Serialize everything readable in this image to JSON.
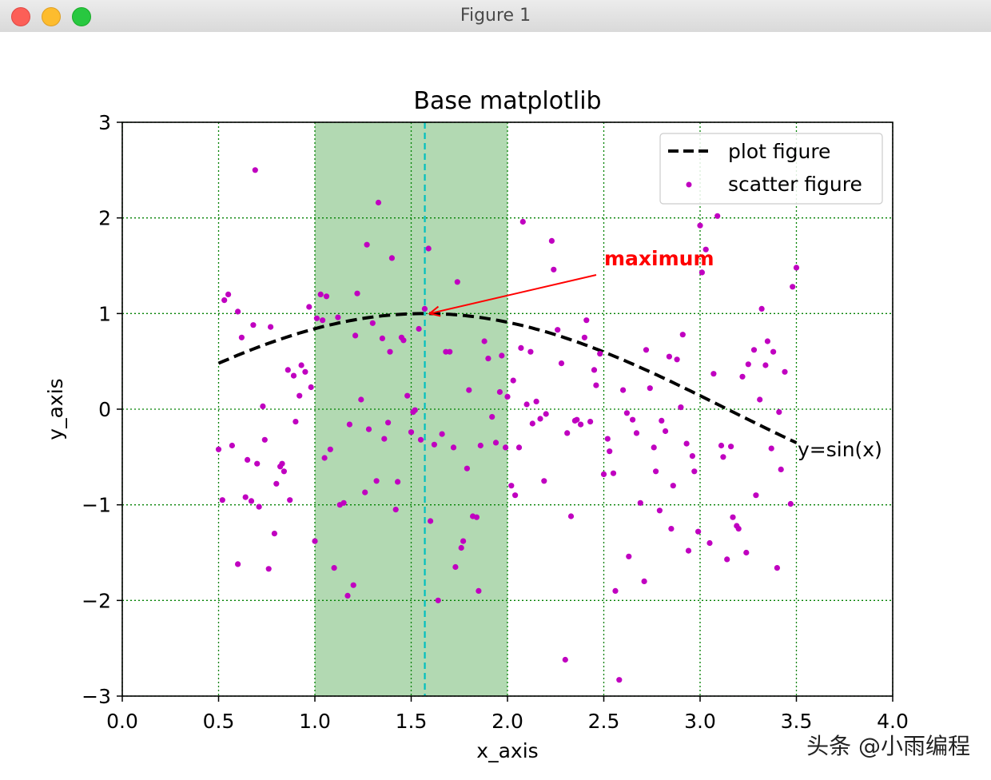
{
  "window": {
    "title": "Figure 1"
  },
  "watermark": "头条 @小雨编程",
  "chart_data": {
    "type": "line+scatter",
    "title": "Base matplotlib",
    "xlabel": "x_axis",
    "ylabel": "y_axis",
    "xlim": [
      0.0,
      4.0
    ],
    "ylim": [
      -3,
      3
    ],
    "xticks": [
      0.0,
      0.5,
      1.0,
      1.5,
      2.0,
      2.5,
      3.0,
      3.5,
      4.0
    ],
    "xtick_labels": [
      "0.0",
      "0.5",
      "1.0",
      "1.5",
      "2.0",
      "2.5",
      "3.0",
      "3.5",
      "4.0"
    ],
    "yticks": [
      -3,
      -2,
      -1,
      0,
      1,
      2,
      3
    ],
    "ytick_labels": [
      "−3",
      "−2",
      "−1",
      "0",
      "1",
      "2",
      "3"
    ],
    "grid": true,
    "grid_color": "#008000",
    "legend_position": "top-right",
    "shaded_span": {
      "x0": 1.0,
      "x1": 2.0,
      "color": "#008000"
    },
    "vline": {
      "x": 1.5708,
      "color": "#00bfbf"
    },
    "line_series": {
      "name": "plot figure",
      "function": "sin",
      "x_start": 0.5,
      "x_end": 3.5,
      "color": "#000000"
    },
    "line_label": "y=sin(x)",
    "annotation": {
      "text": "maximum",
      "point": [
        1.5708,
        1.0
      ],
      "text_at": [
        2.5,
        1.5
      ],
      "color": "#ff0000"
    },
    "scatter_series": {
      "name": "scatter figure",
      "color": "#c000c0",
      "points": [
        [
          0.5,
          -0.42
        ],
        [
          0.52,
          -0.95
        ],
        [
          0.53,
          1.14
        ],
        [
          0.55,
          1.2
        ],
        [
          0.57,
          -0.38
        ],
        [
          0.6,
          -1.62
        ],
        [
          0.6,
          1.02
        ],
        [
          0.62,
          0.75
        ],
        [
          0.64,
          -0.92
        ],
        [
          0.65,
          -0.53
        ],
        [
          0.67,
          -0.96
        ],
        [
          0.68,
          0.88
        ],
        [
          0.69,
          2.5
        ],
        [
          0.7,
          -0.57
        ],
        [
          0.71,
          -1.02
        ],
        [
          0.73,
          0.03
        ],
        [
          0.74,
          -0.32
        ],
        [
          0.76,
          -1.67
        ],
        [
          0.77,
          0.86
        ],
        [
          0.79,
          -1.3
        ],
        [
          0.8,
          -0.78
        ],
        [
          0.82,
          -0.6
        ],
        [
          0.83,
          -0.57
        ],
        [
          0.84,
          -0.65
        ],
        [
          0.86,
          0.41
        ],
        [
          0.87,
          -0.95
        ],
        [
          0.89,
          0.35
        ],
        [
          0.9,
          -0.13
        ],
        [
          0.92,
          0.14
        ],
        [
          0.93,
          0.46
        ],
        [
          0.95,
          0.39
        ],
        [
          0.97,
          1.07
        ],
        [
          0.98,
          0.23
        ],
        [
          1.0,
          -1.38
        ],
        [
          1.01,
          0.95
        ],
        [
          1.03,
          1.2
        ],
        [
          1.04,
          0.93
        ],
        [
          1.05,
          -0.51
        ],
        [
          1.06,
          1.18
        ],
        [
          1.08,
          -0.42
        ],
        [
          1.1,
          -1.66
        ],
        [
          1.12,
          0.96
        ],
        [
          1.13,
          -1.0
        ],
        [
          1.15,
          -0.98
        ],
        [
          1.17,
          -1.95
        ],
        [
          1.18,
          -0.16
        ],
        [
          1.2,
          -1.84
        ],
        [
          1.21,
          0.77
        ],
        [
          1.22,
          1.21
        ],
        [
          1.24,
          0.1
        ],
        [
          1.26,
          -0.87
        ],
        [
          1.27,
          1.72
        ],
        [
          1.28,
          -0.21
        ],
        [
          1.3,
          0.9
        ],
        [
          1.32,
          -0.75
        ],
        [
          1.33,
          2.16
        ],
        [
          1.35,
          0.74
        ],
        [
          1.36,
          -0.31
        ],
        [
          1.38,
          -0.14
        ],
        [
          1.39,
          0.6
        ],
        [
          1.4,
          1.58
        ],
        [
          1.42,
          -1.05
        ],
        [
          1.43,
          -0.76
        ],
        [
          1.45,
          0.75
        ],
        [
          1.46,
          0.72
        ],
        [
          1.48,
          0.14
        ],
        [
          1.5,
          -0.24
        ],
        [
          1.51,
          -0.03
        ],
        [
          1.52,
          -0.01
        ],
        [
          1.54,
          0.84
        ],
        [
          1.55,
          -0.32
        ],
        [
          1.57,
          1.05
        ],
        [
          1.59,
          1.68
        ],
        [
          1.6,
          -1.17
        ],
        [
          1.62,
          -0.37
        ],
        [
          1.64,
          -2.0
        ],
        [
          1.66,
          -0.26
        ],
        [
          1.68,
          0.6
        ],
        [
          1.7,
          0.6
        ],
        [
          1.72,
          -0.4
        ],
        [
          1.73,
          -1.65
        ],
        [
          1.74,
          1.33
        ],
        [
          1.76,
          -1.45
        ],
        [
          1.77,
          -1.38
        ],
        [
          1.79,
          -0.62
        ],
        [
          1.8,
          0.2
        ],
        [
          1.82,
          -1.12
        ],
        [
          1.84,
          -1.13
        ],
        [
          1.85,
          -1.9
        ],
        [
          1.86,
          -0.38
        ],
        [
          1.88,
          0.71
        ],
        [
          1.9,
          0.53
        ],
        [
          1.92,
          -0.08
        ],
        [
          1.94,
          -0.35
        ],
        [
          1.96,
          0.18
        ],
        [
          1.97,
          0.56
        ],
        [
          1.99,
          -0.4
        ],
        [
          2.0,
          0.13
        ],
        [
          2.02,
          -0.8
        ],
        [
          2.03,
          0.3
        ],
        [
          2.04,
          -0.9
        ],
        [
          2.06,
          -0.4
        ],
        [
          2.07,
          0.64
        ],
        [
          2.08,
          1.96
        ],
        [
          2.1,
          0.05
        ],
        [
          2.12,
          0.6
        ],
        [
          2.13,
          -0.15
        ],
        [
          2.15,
          0.08
        ],
        [
          2.17,
          -0.1
        ],
        [
          2.19,
          -0.75
        ],
        [
          2.2,
          -0.05
        ],
        [
          2.23,
          1.76
        ],
        [
          2.24,
          1.46
        ],
        [
          2.26,
          0.83
        ],
        [
          2.28,
          0.48
        ],
        [
          2.3,
          -2.62
        ],
        [
          2.31,
          -0.25
        ],
        [
          2.33,
          -1.12
        ],
        [
          2.35,
          -0.12
        ],
        [
          2.36,
          -0.11
        ],
        [
          2.38,
          -0.16
        ],
        [
          2.4,
          0.75
        ],
        [
          2.41,
          0.93
        ],
        [
          2.43,
          -0.13
        ],
        [
          2.45,
          0.41
        ],
        [
          2.46,
          0.25
        ],
        [
          2.48,
          0.58
        ],
        [
          2.5,
          -0.68
        ],
        [
          2.52,
          -0.31
        ],
        [
          2.53,
          -0.44
        ],
        [
          2.55,
          -0.67
        ],
        [
          2.56,
          -1.9
        ],
        [
          2.58,
          -2.83
        ],
        [
          2.6,
          0.2
        ],
        [
          2.62,
          -0.04
        ],
        [
          2.63,
          -1.54
        ],
        [
          2.65,
          -0.11
        ],
        [
          2.67,
          -0.25
        ],
        [
          2.69,
          -0.98
        ],
        [
          2.71,
          -1.8
        ],
        [
          2.72,
          0.62
        ],
        [
          2.74,
          0.22
        ],
        [
          2.76,
          -0.4
        ],
        [
          2.77,
          -0.65
        ],
        [
          2.79,
          -1.06
        ],
        [
          2.8,
          -0.12
        ],
        [
          2.82,
          -0.23
        ],
        [
          2.84,
          0.55
        ],
        [
          2.85,
          -1.25
        ],
        [
          2.86,
          -0.8
        ],
        [
          2.88,
          0.52
        ],
        [
          2.9,
          0.02
        ],
        [
          2.91,
          0.78
        ],
        [
          2.93,
          -0.36
        ],
        [
          2.94,
          -1.48
        ],
        [
          2.96,
          -0.49
        ],
        [
          2.97,
          -0.65
        ],
        [
          2.99,
          -1.28
        ],
        [
          3.0,
          1.92
        ],
        [
          3.01,
          1.43
        ],
        [
          3.03,
          1.67
        ],
        [
          3.05,
          -1.4
        ],
        [
          3.07,
          0.37
        ],
        [
          3.09,
          2.02
        ],
        [
          3.11,
          -0.38
        ],
        [
          3.12,
          -0.5
        ],
        [
          3.14,
          -1.57
        ],
        [
          3.16,
          -0.39
        ],
        [
          3.17,
          -1.13
        ],
        [
          3.19,
          -1.22
        ],
        [
          3.2,
          -1.25
        ],
        [
          3.22,
          0.34
        ],
        [
          3.24,
          -1.5
        ],
        [
          3.25,
          0.47
        ],
        [
          3.28,
          0.62
        ],
        [
          3.29,
          -0.9
        ],
        [
          3.31,
          0.1
        ],
        [
          3.32,
          1.05
        ],
        [
          3.34,
          0.46
        ],
        [
          3.35,
          0.71
        ],
        [
          3.37,
          -0.41
        ],
        [
          3.38,
          0.6
        ],
        [
          3.4,
          -1.66
        ],
        [
          3.41,
          -0.03
        ],
        [
          3.42,
          -0.63
        ],
        [
          3.44,
          0.39
        ],
        [
          3.47,
          -0.99
        ],
        [
          3.48,
          1.28
        ],
        [
          3.5,
          1.48
        ]
      ]
    }
  }
}
